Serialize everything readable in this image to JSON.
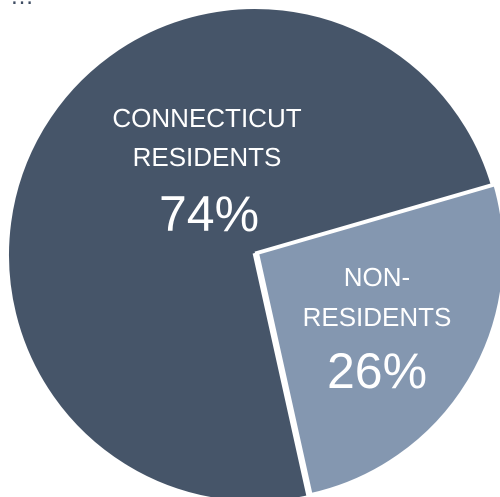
{
  "chart_data": {
    "type": "pie",
    "title": "…",
    "slices": [
      {
        "label_lines": [
          "CONNECTICUT",
          "RESIDENTS"
        ],
        "percent_label": "74%",
        "value": 74,
        "color": "#465569"
      },
      {
        "label_lines": [
          "NON-",
          "RESIDENTS"
        ],
        "percent_label": "26%",
        "value": 26,
        "color": "#8497b0"
      }
    ],
    "separator_color": "#ffffff",
    "legend": "none"
  }
}
